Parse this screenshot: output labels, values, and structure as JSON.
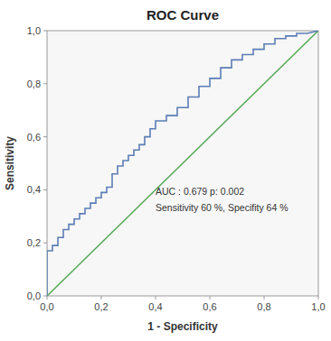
{
  "chart_data": {
    "type": "line",
    "title": "ROC Curve",
    "x_label": "1 - Specificity",
    "y_label": "Sensitivity",
    "xlim": [
      0.0,
      1.0
    ],
    "ylim": [
      0.0,
      1.0
    ],
    "xticks": [
      {
        "value": 0.0,
        "label": "0,0"
      },
      {
        "value": 0.2,
        "label": "0,2"
      },
      {
        "value": 0.4,
        "label": "0,4"
      },
      {
        "value": 0.6,
        "label": "0,6"
      },
      {
        "value": 0.8,
        "label": "0,8"
      },
      {
        "value": 1.0,
        "label": "1,0"
      }
    ],
    "yticks": [
      {
        "value": 0.0,
        "label": "0,0"
      },
      {
        "value": 0.2,
        "label": "0,2"
      },
      {
        "value": 0.4,
        "label": "0,4"
      },
      {
        "value": 0.6,
        "label": "0,6"
      },
      {
        "value": 0.8,
        "label": "0,8"
      },
      {
        "value": 1.0,
        "label": "1,0"
      }
    ],
    "grid": false,
    "annotations": [
      "AUC : 0.679  p: 0.002",
      "Sensitivity 60 %, Specifity 64 %"
    ],
    "series": [
      {
        "color": "#5aaa5a",
        "x": [
          0,
          1
        ],
        "values": [
          0,
          1
        ]
      },
      {
        "color": "#5b7db5",
        "x": [
          0.0,
          0.0,
          0.02,
          0.02,
          0.04,
          0.04,
          0.06,
          0.06,
          0.08,
          0.08,
          0.1,
          0.1,
          0.12,
          0.12,
          0.14,
          0.14,
          0.16,
          0.16,
          0.18,
          0.18,
          0.2,
          0.2,
          0.22,
          0.22,
          0.24,
          0.24,
          0.26,
          0.26,
          0.28,
          0.28,
          0.3,
          0.3,
          0.32,
          0.32,
          0.34,
          0.34,
          0.36,
          0.36,
          0.38,
          0.38,
          0.4,
          0.4,
          0.44,
          0.44,
          0.48,
          0.48,
          0.52,
          0.52,
          0.56,
          0.56,
          0.6,
          0.6,
          0.64,
          0.64,
          0.68,
          0.68,
          0.72,
          0.72,
          0.76,
          0.76,
          0.8,
          0.8,
          0.84,
          0.84,
          0.88,
          0.88,
          0.92,
          0.92,
          0.96,
          0.96,
          1.0
        ],
        "values": [
          0.0,
          0.17,
          0.17,
          0.19,
          0.19,
          0.22,
          0.22,
          0.25,
          0.25,
          0.27,
          0.27,
          0.29,
          0.29,
          0.31,
          0.31,
          0.33,
          0.33,
          0.35,
          0.35,
          0.37,
          0.37,
          0.39,
          0.39,
          0.41,
          0.41,
          0.46,
          0.46,
          0.49,
          0.49,
          0.51,
          0.51,
          0.53,
          0.53,
          0.55,
          0.55,
          0.57,
          0.57,
          0.6,
          0.6,
          0.63,
          0.63,
          0.66,
          0.66,
          0.68,
          0.68,
          0.71,
          0.71,
          0.75,
          0.75,
          0.79,
          0.79,
          0.82,
          0.82,
          0.86,
          0.86,
          0.89,
          0.89,
          0.91,
          0.91,
          0.93,
          0.93,
          0.95,
          0.95,
          0.97,
          0.97,
          0.98,
          0.98,
          0.99,
          0.99,
          0.99,
          1.0
        ]
      }
    ]
  }
}
